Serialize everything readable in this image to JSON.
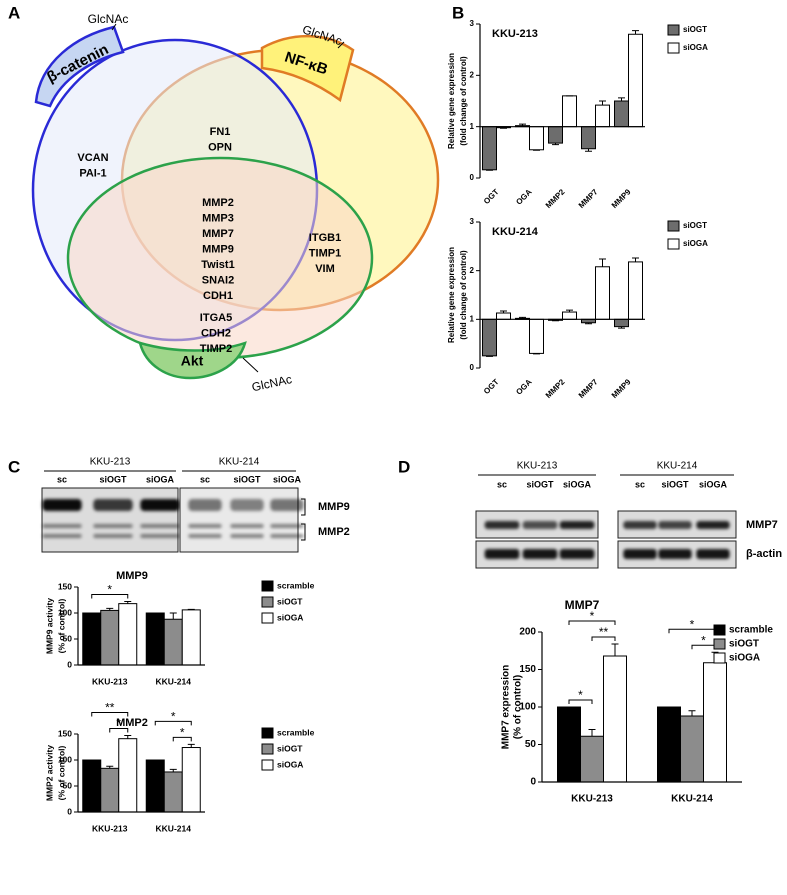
{
  "panel_labels": [
    "A",
    "B",
    "C",
    "D"
  ],
  "venn": {
    "caps": [
      {
        "label": "β-catenin",
        "tag": "GlcNAc"
      },
      {
        "label": "NF-κB",
        "tag": "GlcNAc"
      },
      {
        "label": "Akt",
        "tag": "GlcNAc"
      }
    ],
    "regions": [
      [
        "VCAN",
        "PAI-1"
      ],
      [
        "FN1",
        "OPN"
      ],
      [
        "MMP2",
        "MMP3",
        "MMP7",
        "MMP9",
        "Twist1",
        "SNAI2",
        "CDH1"
      ],
      [
        "ITGB1",
        "TIMP1",
        "VIM"
      ],
      [
        "ITGA5",
        "CDH2",
        "TIMP2"
      ]
    ]
  },
  "blots": [
    {
      "groups": [
        {
          "name": "KKU-213",
          "lanes": [
            "sc",
            "siOGT",
            "siOGA"
          ]
        },
        {
          "name": "KKU-214",
          "lanes": [
            "sc",
            "siOGT",
            "siOGA"
          ]
        }
      ],
      "bands": [
        "MMP9",
        "MMP2"
      ]
    },
    {
      "groups": [
        {
          "name": "KKU-213",
          "lanes": [
            "sc",
            "siOGT",
            "siOGA"
          ]
        },
        {
          "name": "KKU-214",
          "lanes": [
            "sc",
            "siOGT",
            "siOGA"
          ]
        }
      ],
      "bands": [
        "MMP7",
        "β-actin"
      ]
    }
  ],
  "chart_data": [
    {
      "type": "bar",
      "title": "KKU-213",
      "ylabel": [
        "Relative gene expression",
        "(fold change of control)"
      ],
      "categories": [
        "OGT",
        "OGA",
        "MMP2",
        "MMP7",
        "MMP9"
      ],
      "series": [
        {
          "name": "siOGT",
          "color": "#6d6d6d",
          "values": [
            0.16,
            1.02,
            0.68,
            0.57,
            1.5
          ],
          "errors": [
            0.01,
            0.03,
            0.03,
            0.05,
            0.06
          ]
        },
        {
          "name": "siOGA",
          "color": "#ffffff",
          "values": [
            0.98,
            0.55,
            1.6,
            1.42,
            2.8
          ],
          "errors": [
            0.01,
            0.01,
            0,
            0.08,
            0.07
          ]
        }
      ],
      "ylim": [
        0,
        3
      ],
      "yticks": [
        0,
        1,
        2,
        3
      ],
      "baseline": 1,
      "legend": "right"
    },
    {
      "type": "bar",
      "title": "KKU-214",
      "ylabel": [
        "Relative gene expression",
        "(fold change of control)"
      ],
      "categories": [
        "OGT",
        "OGA",
        "MMP2",
        "MMP7",
        "MMP9"
      ],
      "series": [
        {
          "name": "siOGT",
          "color": "#6d6d6d",
          "values": [
            0.25,
            1.02,
            0.98,
            0.93,
            0.85
          ],
          "errors": [
            0.01,
            0.02,
            0.01,
            0.02,
            0.03
          ]
        },
        {
          "name": "siOGA",
          "color": "#ffffff",
          "values": [
            1.13,
            0.3,
            1.15,
            2.08,
            2.18
          ],
          "errors": [
            0.04,
            0.01,
            0.04,
            0.16,
            0.08
          ]
        }
      ],
      "ylim": [
        0,
        3
      ],
      "yticks": [
        0,
        1,
        2,
        3
      ],
      "baseline": 1,
      "legend": "right"
    },
    {
      "type": "bar",
      "title": "MMP9",
      "ylabel": [
        "MMP9 activity",
        "(% of control)"
      ],
      "categories": [
        "KKU-213",
        "KKU-214"
      ],
      "series": [
        {
          "name": "scramble",
          "color": "#000000",
          "values": [
            100,
            100
          ],
          "errors": [
            0,
            0
          ]
        },
        {
          "name": "siOGT",
          "color": "#8c8c8c",
          "values": [
            105,
            88
          ],
          "errors": [
            4,
            12
          ]
        },
        {
          "name": "siOGA",
          "color": "#ffffff",
          "values": [
            118,
            106
          ],
          "errors": [
            4,
            1
          ]
        }
      ],
      "ylim": [
        0,
        150
      ],
      "yticks": [
        0,
        50,
        100,
        150
      ],
      "legend": "right",
      "significance": [
        {
          "group": 0,
          "from": 0,
          "to": 2,
          "label": "*"
        }
      ]
    },
    {
      "type": "bar",
      "title": "MMP2",
      "ylabel": [
        "MMP2 activity",
        "(% of control)"
      ],
      "categories": [
        "KKU-213",
        "KKU-214"
      ],
      "series": [
        {
          "name": "scramble",
          "color": "#000000",
          "values": [
            100,
            100
          ],
          "errors": [
            0,
            0
          ]
        },
        {
          "name": "siOGT",
          "color": "#8c8c8c",
          "values": [
            84,
            77
          ],
          "errors": [
            4,
            5
          ]
        },
        {
          "name": "siOGA",
          "color": "#ffffff",
          "values": [
            141,
            124
          ],
          "errors": [
            6,
            6
          ]
        }
      ],
      "ylim": [
        0,
        150
      ],
      "yticks": [
        0,
        50,
        100,
        150
      ],
      "legend": "right",
      "significance": [
        {
          "group": 0,
          "from": 1,
          "to": 2,
          "label": "*"
        },
        {
          "group": 0,
          "from": 0,
          "to": 2,
          "label": "**"
        },
        {
          "group": 1,
          "from": 1,
          "to": 2,
          "label": "*"
        },
        {
          "group": 1,
          "from": 0,
          "to": 2,
          "label": "*"
        }
      ]
    },
    {
      "type": "bar",
      "title": "MMP7",
      "ylabel": [
        "MMP7 expression",
        "(% of control)"
      ],
      "categories": [
        "KKU-213",
        "KKU-214"
      ],
      "series": [
        {
          "name": "scramble",
          "color": "#000000",
          "values": [
            100,
            100
          ],
          "errors": [
            0,
            0
          ]
        },
        {
          "name": "siOGT",
          "color": "#8c8c8c",
          "values": [
            61,
            88
          ],
          "errors": [
            9,
            7
          ]
        },
        {
          "name": "siOGA",
          "color": "#ffffff",
          "values": [
            168,
            159
          ],
          "errors": [
            16,
            14
          ]
        }
      ],
      "ylim": [
        0,
        200
      ],
      "yticks": [
        0,
        50,
        100,
        150,
        200
      ],
      "legend": "right",
      "significance": [
        {
          "group": 0,
          "from": 0,
          "to": 1,
          "label": "*"
        },
        {
          "group": 0,
          "from": 1,
          "to": 2,
          "label": "**"
        },
        {
          "group": 0,
          "from": 0,
          "to": 2,
          "label": "*"
        },
        {
          "group": 1,
          "from": 1,
          "to": 2,
          "label": "*"
        },
        {
          "group": 1,
          "from": 0,
          "to": 2,
          "label": "*"
        }
      ]
    }
  ]
}
